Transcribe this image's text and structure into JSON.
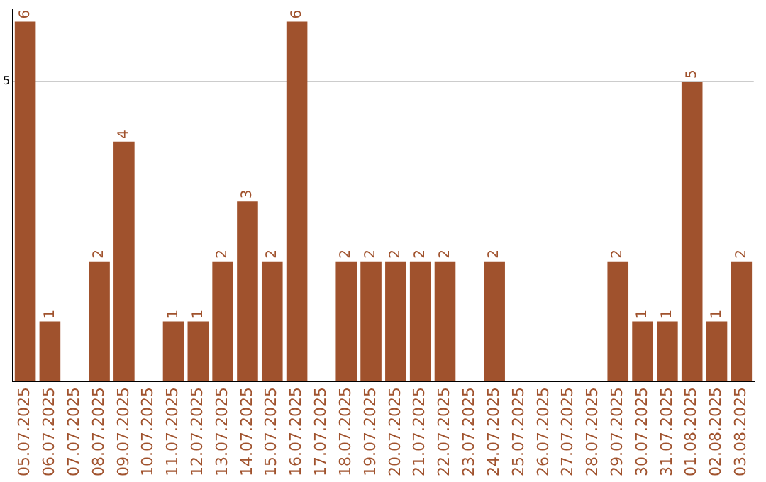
{
  "chart_data": {
    "type": "bar",
    "categories": [
      "05.07.2025",
      "06.07.2025",
      "07.07.2025",
      "08.07.2025",
      "09.07.2025",
      "10.07.2025",
      "11.07.2025",
      "12.07.2025",
      "13.07.2025",
      "14.07.2025",
      "15.07.2025",
      "16.07.2025",
      "17.07.2025",
      "18.07.2025",
      "19.07.2025",
      "20.07.2025",
      "21.07.2025",
      "22.07.2025",
      "23.07.2025",
      "24.07.2025",
      "25.07.2025",
      "26.07.2025",
      "27.07.2025",
      "28.07.2025",
      "29.07.2025",
      "30.07.2025",
      "31.07.2025",
      "01.08.2025",
      "02.08.2025",
      "03.08.2025"
    ],
    "values": [
      6,
      1,
      0,
      2,
      4,
      0,
      1,
      1,
      2,
      3,
      2,
      6,
      0,
      2,
      2,
      2,
      2,
      2,
      0,
      2,
      0,
      0,
      0,
      0,
      2,
      1,
      1,
      5,
      1,
      2
    ],
    "value_labels": [
      "6",
      "1",
      null,
      "2",
      "4",
      null,
      "1",
      "1",
      "2",
      "3",
      "2",
      "6",
      null,
      "2",
      "2",
      "2",
      "2",
      "2",
      null,
      "2",
      null,
      null,
      null,
      null,
      "2",
      "1",
      "1",
      "5",
      "1",
      "2"
    ],
    "color": "#a0522d",
    "ylim": [
      0,
      6.2
    ],
    "yticks": [
      5
    ],
    "grid": "y",
    "legend": false
  }
}
